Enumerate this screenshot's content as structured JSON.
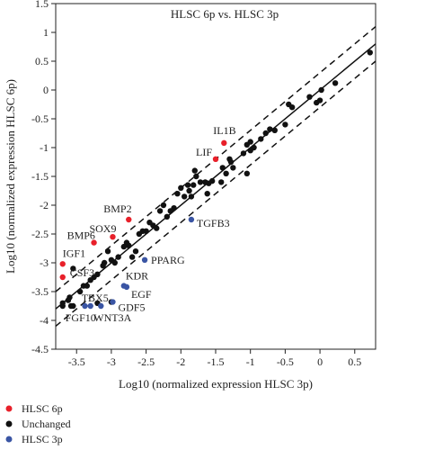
{
  "chart_data": {
    "type": "scatter",
    "title": "HLSC 6p vs. HLSC 3p",
    "xlabel": "Log10 (normalized expression HLSC 3p)",
    "ylabel": "Log10 (normalized expression HLSC 6p)",
    "xlim": [
      -3.8,
      0.8
    ],
    "ylim": [
      -4.5,
      1.5
    ],
    "x_ticks": [
      -3.5,
      -3,
      -2.5,
      -2,
      -1.5,
      -1,
      -0.5,
      0,
      0.5
    ],
    "x_tick_labels": [
      "-3.5",
      "-3",
      "-2.5",
      "-2",
      "-1.5",
      "-1",
      "-0.5",
      "0",
      "0.5"
    ],
    "y_ticks": [
      -4.5,
      -4,
      -3.5,
      -3,
      -2.5,
      -2,
      -1.5,
      -1,
      -0.5,
      0,
      0.5,
      1,
      1.5
    ],
    "y_tick_labels": [
      "-4.5",
      "-4",
      "-3.5",
      "-3",
      "-2.5",
      "-2",
      "-1.5",
      "-1",
      "-0.5",
      "0",
      "0.5",
      "1",
      "1.5"
    ],
    "grid": false,
    "legend_position": "bottom-left-below",
    "reference_lines": {
      "identity": true,
      "fold_offset_log10": 0.3
    },
    "colors": {
      "hlsc6p": "#e8202a",
      "unchanged": "#111111",
      "hlsc3p": "#3a55a4"
    },
    "series": [
      {
        "name": "HLSC 6p",
        "color": "#e8202a",
        "points": [
          {
            "x": -1.38,
            "y": -0.92,
            "label": "IL1B"
          },
          {
            "x": -1.5,
            "y": -1.2,
            "label": "LIF"
          },
          {
            "x": -2.75,
            "y": -2.25,
            "label": "BMP2"
          },
          {
            "x": -2.98,
            "y": -2.55,
            "label": "SOX9"
          },
          {
            "x": -3.25,
            "y": -2.65,
            "label": "BMP6"
          },
          {
            "x": -3.7,
            "y": -3.02,
            "label": "IGF1"
          },
          {
            "x": -3.7,
            "y": -3.25,
            "label": "CSF3"
          }
        ]
      },
      {
        "name": "Unchanged",
        "color": "#111111",
        "points": [
          {
            "x": 0.72,
            "y": 0.65
          },
          {
            "x": 0.22,
            "y": 0.12
          },
          {
            "x": 0.02,
            "y": 0.0
          },
          {
            "x": -0.05,
            "y": -0.22
          },
          {
            "x": 0.0,
            "y": -0.18
          },
          {
            "x": -0.15,
            "y": -0.12
          },
          {
            "x": -0.4,
            "y": -0.3
          },
          {
            "x": -0.45,
            "y": -0.25
          },
          {
            "x": -0.5,
            "y": -0.6
          },
          {
            "x": -0.65,
            "y": -0.7
          },
          {
            "x": -0.72,
            "y": -0.68
          },
          {
            "x": -0.78,
            "y": -0.75
          },
          {
            "x": -0.85,
            "y": -0.85
          },
          {
            "x": -0.95,
            "y": -1.0
          },
          {
            "x": -1.0,
            "y": -0.9
          },
          {
            "x": -1.0,
            "y": -1.05
          },
          {
            "x": -1.05,
            "y": -0.95
          },
          {
            "x": -1.1,
            "y": -1.1
          },
          {
            "x": -1.05,
            "y": -1.45
          },
          {
            "x": -1.25,
            "y": -1.35
          },
          {
            "x": -1.28,
            "y": -1.25
          },
          {
            "x": -1.3,
            "y": -1.2
          },
          {
            "x": -1.35,
            "y": -1.45
          },
          {
            "x": -1.4,
            "y": -1.35
          },
          {
            "x": -1.42,
            "y": -1.6
          },
          {
            "x": -1.55,
            "y": -1.58
          },
          {
            "x": -1.6,
            "y": -1.62
          },
          {
            "x": -1.62,
            "y": -1.8
          },
          {
            "x": -1.65,
            "y": -1.6
          },
          {
            "x": -1.72,
            "y": -1.6
          },
          {
            "x": -1.78,
            "y": -1.5
          },
          {
            "x": -1.8,
            "y": -1.4
          },
          {
            "x": -1.82,
            "y": -1.65
          },
          {
            "x": -1.85,
            "y": -1.85
          },
          {
            "x": -1.88,
            "y": -1.75
          },
          {
            "x": -1.9,
            "y": -1.65
          },
          {
            "x": -1.95,
            "y": -1.85
          },
          {
            "x": -2.0,
            "y": -1.7
          },
          {
            "x": -2.05,
            "y": -1.8
          },
          {
            "x": -2.1,
            "y": -2.05
          },
          {
            "x": -2.15,
            "y": -2.1
          },
          {
            "x": -2.2,
            "y": -2.2
          },
          {
            "x": -2.25,
            "y": -2.0
          },
          {
            "x": -2.3,
            "y": -2.1
          },
          {
            "x": -2.35,
            "y": -2.4
          },
          {
            "x": -2.4,
            "y": -2.35
          },
          {
            "x": -2.45,
            "y": -2.3
          },
          {
            "x": -2.5,
            "y": -2.45
          },
          {
            "x": -2.55,
            "y": -2.45
          },
          {
            "x": -2.6,
            "y": -2.5
          },
          {
            "x": -2.65,
            "y": -2.8
          },
          {
            "x": -2.7,
            "y": -2.9
          },
          {
            "x": -2.75,
            "y": -2.7
          },
          {
            "x": -2.78,
            "y": -2.65
          },
          {
            "x": -2.82,
            "y": -2.72
          },
          {
            "x": -2.9,
            "y": -2.9
          },
          {
            "x": -2.95,
            "y": -3.0
          },
          {
            "x": -3.0,
            "y": -2.95
          },
          {
            "x": -3.05,
            "y": -2.8
          },
          {
            "x": -3.1,
            "y": -3.0
          },
          {
            "x": -3.12,
            "y": -3.05
          },
          {
            "x": -3.2,
            "y": -3.2
          },
          {
            "x": -3.25,
            "y": -3.25
          },
          {
            "x": -3.3,
            "y": -3.3
          },
          {
            "x": -3.35,
            "y": -3.4
          },
          {
            "x": -3.4,
            "y": -3.4
          },
          {
            "x": -3.45,
            "y": -3.5
          },
          {
            "x": -3.55,
            "y": -3.1
          },
          {
            "x": -3.6,
            "y": -3.6
          },
          {
            "x": -3.62,
            "y": -3.65
          },
          {
            "x": -3.7,
            "y": -3.7
          },
          {
            "x": -3.7,
            "y": -3.75
          },
          {
            "x": -3.55,
            "y": -3.75
          },
          {
            "x": -3.58,
            "y": -3.75
          },
          {
            "x": -3.2,
            "y": -3.7
          },
          {
            "x": -3.0,
            "y": -3.68
          }
        ]
      },
      {
        "name": "HLSC 3p",
        "color": "#3a55a4",
        "points": [
          {
            "x": -1.85,
            "y": -2.25,
            "label": "TGFB3"
          },
          {
            "x": -2.52,
            "y": -2.95,
            "label": "PPARG"
          },
          {
            "x": -2.82,
            "y": -3.4,
            "label": "KDR"
          },
          {
            "x": -2.78,
            "y": -3.42,
            "label": "EGF"
          },
          {
            "x": -2.98,
            "y": -3.68,
            "label": "GDF5"
          },
          {
            "x": -3.3,
            "y": -3.75,
            "label": "TBX5"
          },
          {
            "x": -3.38,
            "y": -3.75,
            "label": ""
          },
          {
            "x": -3.15,
            "y": -3.75,
            "label": "WNT3A"
          }
        ]
      }
    ],
    "annotations": [
      {
        "text": "IL1B",
        "x": -1.38,
        "y": -0.92
      },
      {
        "text": "LIF",
        "x": -1.5,
        "y": -1.2
      },
      {
        "text": "BMP2",
        "x": -2.75,
        "y": -2.25
      },
      {
        "text": "SOX9",
        "x": -2.98,
        "y": -2.55
      },
      {
        "text": "BMP6",
        "x": -3.25,
        "y": -2.65
      },
      {
        "text": "IGF1",
        "x": -3.7,
        "y": -3.02
      },
      {
        "text": "CSF3",
        "x": -3.7,
        "y": -3.25
      },
      {
        "text": "TGFB3",
        "x": -1.85,
        "y": -2.25
      },
      {
        "text": "PPARG",
        "x": -2.52,
        "y": -2.95
      },
      {
        "text": "KDR",
        "x": -2.82,
        "y": -3.4
      },
      {
        "text": "EGF",
        "x": -2.78,
        "y": -3.42
      },
      {
        "text": "GDF5",
        "x": -2.98,
        "y": -3.68
      },
      {
        "text": "TBX5",
        "x": -3.3,
        "y": -3.75
      },
      {
        "text": "WNT3A",
        "x": -3.15,
        "y": -3.75
      },
      {
        "text": "FGF10",
        "x": -3.7,
        "y": -3.75
      }
    ]
  },
  "legend": {
    "items": [
      {
        "label": "HLSC 6p",
        "color": "#e8202a"
      },
      {
        "label": "Unchanged",
        "color": "#111111"
      },
      {
        "label": "HLSC 3p",
        "color": "#3a55a4"
      }
    ]
  }
}
